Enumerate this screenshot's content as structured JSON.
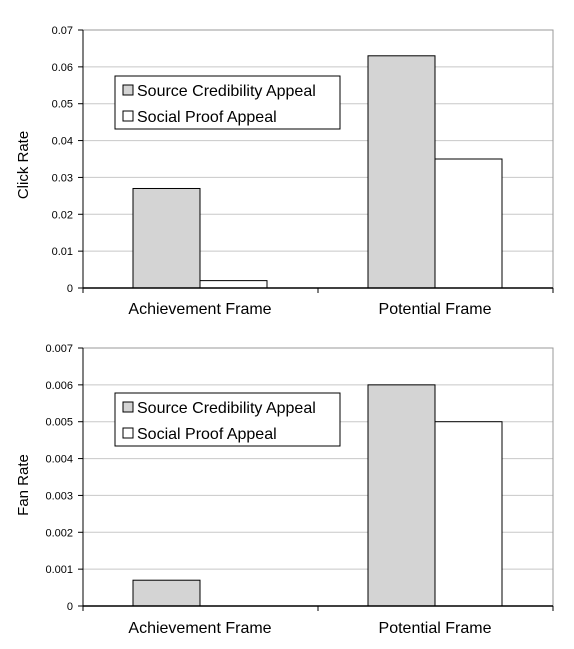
{
  "colors": {
    "source_fill": "#d4d4d4",
    "social_fill": "#ffffff",
    "grid": "#c8c8c8",
    "stroke": "#000000"
  },
  "chart_data": [
    {
      "type": "bar",
      "title": "",
      "xlabel": "",
      "ylabel": "Click Rate",
      "categories": [
        "Achievement Frame",
        "Potential Frame"
      ],
      "series": [
        {
          "name": "Source Credibility Appeal",
          "values": [
            0.027,
            0.063
          ]
        },
        {
          "name": "Social Proof Appeal",
          "values": [
            0.002,
            0.035
          ]
        }
      ],
      "ylim": [
        0,
        0.07
      ],
      "yticks": [
        "0",
        "0.01",
        "0.02",
        "0.03",
        "0.04",
        "0.05",
        "0.06",
        "0.07"
      ],
      "grid": true,
      "legend": "top-left"
    },
    {
      "type": "bar",
      "title": "",
      "xlabel": "",
      "ylabel": "Fan Rate",
      "categories": [
        "Achievement Frame",
        "Potential Frame"
      ],
      "series": [
        {
          "name": "Source Credibility Appeal",
          "values": [
            0.0007,
            0.006
          ]
        },
        {
          "name": "Social Proof Appeal",
          "values": [
            0.0,
            0.005
          ]
        }
      ],
      "ylim": [
        0,
        0.007
      ],
      "yticks": [
        "0",
        "0.001",
        "0.002",
        "0.003",
        "0.004",
        "0.005",
        "0.006",
        "0.007"
      ],
      "grid": true,
      "legend": "top-left"
    }
  ]
}
